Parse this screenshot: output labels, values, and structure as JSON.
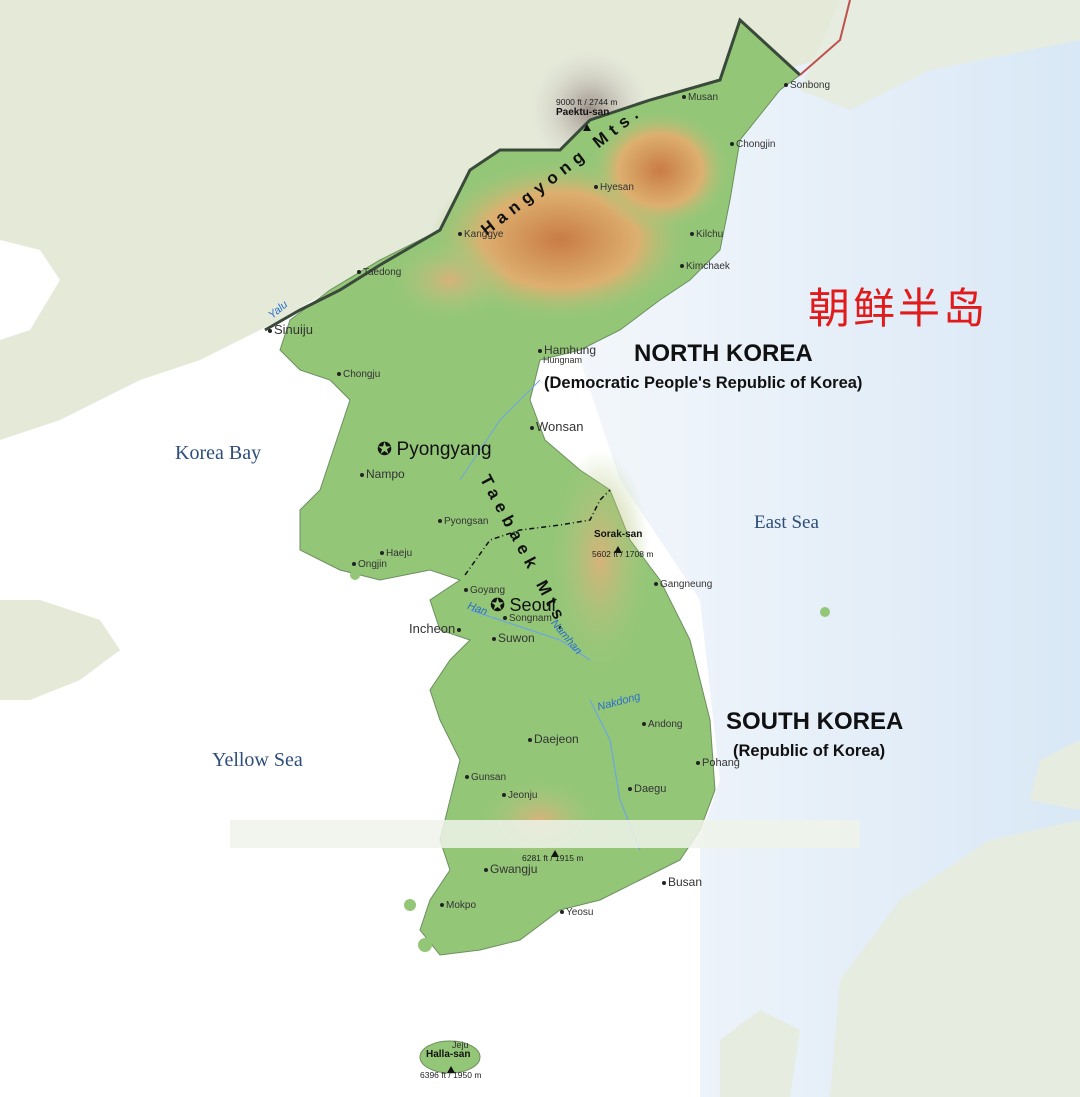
{
  "title": "朝鲜半岛",
  "colors": {
    "sea": "#e6eef8",
    "land": "#8fc473",
    "highland": "#d49a5c",
    "china_land": "#e2e8d6",
    "border": "#3a4a3a",
    "title_red": "#e11b1b",
    "river": "#2a6fc9"
  },
  "countries": {
    "north": {
      "name": "NORTH KOREA",
      "full": "(Democratic People's Republic of Korea)"
    },
    "south": {
      "name": "SOUTH KOREA",
      "full": "(Republic of Korea)"
    }
  },
  "seas": {
    "korea_bay": "Korea Bay",
    "yellow_sea": "Yellow Sea",
    "east_sea": "East Sea"
  },
  "capitals": {
    "pyongyang": "Pyongyang",
    "seoul": "Seoul"
  },
  "mountain_ranges": {
    "hangyong": "Hangyong Mts.",
    "taebaek": "Taebaek Mts."
  },
  "rivers": {
    "yalu": "Yalu",
    "han": "Han",
    "namhan": "Namhan",
    "nakdong": "Nakdong"
  },
  "peaks": {
    "paektu": {
      "name": "Paektu-san",
      "elev": "9000 ft / 2744 m"
    },
    "sorak": {
      "name": "Sorak-san",
      "elev": "5602 ft / 1708 m"
    },
    "jiri": {
      "elev": "6281 ft / 1915 m"
    },
    "halla": {
      "name": "Halla-san",
      "elev": "6396 ft / 1950 m"
    }
  },
  "cities": {
    "musan": "Musan",
    "sonbong": "Sonbong",
    "chongjin": "Chongjin",
    "hyesan": "Hyesan",
    "kanggye": "Kanggye",
    "kilchu": "Kilchu",
    "kimchaek": "Kimchaek",
    "taedong": "Taedong",
    "sinuiju": "Sinuiju",
    "hamhung": "Hamhung",
    "hungnam": "Hungnam",
    "chongju": "Chongju",
    "wonsan": "Wonsan",
    "nampo": "Nampo",
    "pyongsan": "Pyongsan",
    "haeju": "Haeju",
    "ongjin": "Ongjin",
    "goyang": "Goyang",
    "gangneung": "Gangneung",
    "incheon": "Incheon",
    "songnam": "Songnam",
    "suwon": "Suwon",
    "andong": "Andong",
    "daejeon": "Daejeon",
    "pohang": "Pohang",
    "gunsan": "Gunsan",
    "jeonju": "Jeonju",
    "daegu": "Daegu",
    "gwangju": "Gwangju",
    "busan": "Busan",
    "mokpo": "Mokpo",
    "yeosu": "Yeosu",
    "jeju": "Jeju"
  }
}
